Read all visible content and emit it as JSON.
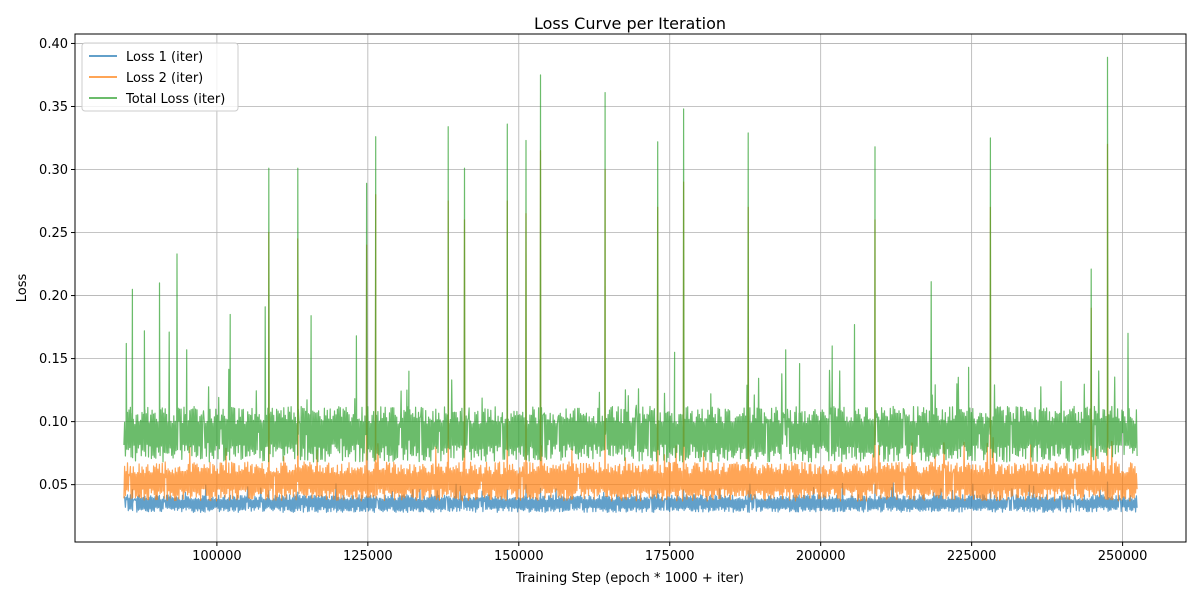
{
  "chart_data": {
    "type": "line",
    "title": "Loss Curve per Iteration",
    "xlabel": "Training Step (epoch * 1000 + iter)",
    "ylabel": "Loss",
    "xlim": [
      76500,
      260500
    ],
    "ylim": [
      0.0045,
      0.4075
    ],
    "x_range_data": [
      84600,
      252400
    ],
    "grid": true,
    "legend_position": "top-left",
    "xticks": [
      100000,
      125000,
      150000,
      175000,
      200000,
      225000,
      250000
    ],
    "xtick_labels": [
      "100000",
      "125000",
      "150000",
      "175000",
      "200000",
      "225000",
      "250000"
    ],
    "yticks": [
      0.05,
      0.1,
      0.15,
      0.2,
      0.25,
      0.3,
      0.35,
      0.4
    ],
    "ytick_labels": [
      "0.05",
      "0.10",
      "0.15",
      "0.20",
      "0.25",
      "0.30",
      "0.35",
      "0.40"
    ],
    "series": [
      {
        "name": "Loss 1 (iter)",
        "color": "#1f77b4",
        "band": [
          0.028,
          0.042
        ],
        "spikes": [
          [
            86000,
            0.046
          ],
          [
            108600,
            0.045
          ],
          [
            113400,
            0.044
          ],
          [
            148100,
            0.046
          ],
          [
            151200,
            0.05
          ],
          [
            153600,
            0.047
          ],
          [
            173000,
            0.045
          ],
          [
            177300,
            0.046
          ],
          [
            188000,
            0.045
          ],
          [
            209000,
            0.05
          ],
          [
            228100,
            0.046
          ],
          [
            247500,
            0.052
          ]
        ]
      },
      {
        "name": "Loss 2 (iter)",
        "color": "#ff7f0e",
        "band": [
          0.037,
          0.068
        ],
        "spikes": [
          [
            108600,
            0.25
          ],
          [
            113400,
            0.245
          ],
          [
            124800,
            0.24
          ],
          [
            126300,
            0.28
          ],
          [
            138300,
            0.275
          ],
          [
            141000,
            0.26
          ],
          [
            148100,
            0.275
          ],
          [
            151200,
            0.265
          ],
          [
            153600,
            0.315
          ],
          [
            164300,
            0.3
          ],
          [
            173000,
            0.27
          ],
          [
            177300,
            0.29
          ],
          [
            188000,
            0.27
          ],
          [
            209000,
            0.26
          ],
          [
            228100,
            0.27
          ],
          [
            244800,
            0.19
          ],
          [
            247500,
            0.32
          ]
        ]
      },
      {
        "name": "Total Loss (iter)",
        "color": "#2ca02c",
        "band": [
          0.068,
          0.112
        ],
        "spikes": [
          [
            85000,
            0.162
          ],
          [
            86000,
            0.205
          ],
          [
            88000,
            0.172
          ],
          [
            90500,
            0.21
          ],
          [
            92100,
            0.171
          ],
          [
            93400,
            0.233
          ],
          [
            95000,
            0.157
          ],
          [
            102200,
            0.185
          ],
          [
            108000,
            0.191
          ],
          [
            108600,
            0.301
          ],
          [
            113400,
            0.301
          ],
          [
            115600,
            0.184
          ],
          [
            123100,
            0.168
          ],
          [
            124800,
            0.289
          ],
          [
            126300,
            0.326
          ],
          [
            131800,
            0.14
          ],
          [
            138300,
            0.334
          ],
          [
            141000,
            0.301
          ],
          [
            148100,
            0.336
          ],
          [
            151200,
            0.323
          ],
          [
            153600,
            0.375
          ],
          [
            164300,
            0.361
          ],
          [
            173000,
            0.322
          ],
          [
            175800,
            0.155
          ],
          [
            177300,
            0.348
          ],
          [
            188000,
            0.329
          ],
          [
            194200,
            0.157
          ],
          [
            196500,
            0.146
          ],
          [
            201900,
            0.16
          ],
          [
            205600,
            0.177
          ],
          [
            209000,
            0.318
          ],
          [
            218300,
            0.211
          ],
          [
            224500,
            0.143
          ],
          [
            228100,
            0.325
          ],
          [
            244800,
            0.221
          ],
          [
            247500,
            0.389
          ],
          [
            250900,
            0.17
          ]
        ]
      }
    ]
  }
}
